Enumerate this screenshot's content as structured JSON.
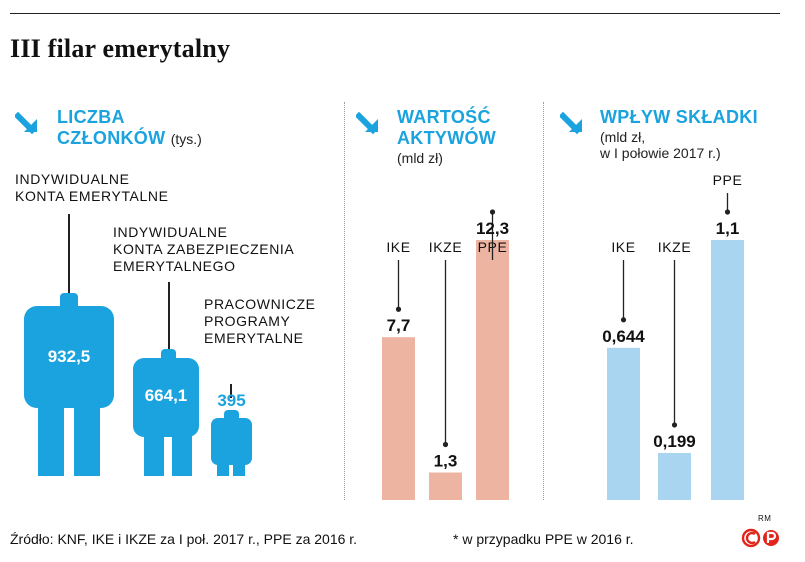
{
  "title": "III filar emerytalny",
  "colors": {
    "accent": "#1aa3de",
    "asset_bar": "#eeb4a2",
    "contrib_bar": "#a9d5f1",
    "logo_red": "#e2251b"
  },
  "icons": {
    "section_arrow": "arrow-down-right-icon",
    "logo": "cp-logo-icon"
  },
  "members": {
    "title_line1": "LICZBA",
    "title_line2": "CZŁONKÓW",
    "unit": "(tys.)",
    "ike_label_1": "INDYWIDUALNE",
    "ike_label_2": "KONTA EMERYTALNE",
    "ikze_label_1": "INDYWIDUALNE",
    "ikze_label_2": "KONTA ZABEZPIECZENIA",
    "ikze_label_3": "EMERYTALNEGO",
    "ppe_label_1": "PRACOWNICZE",
    "ppe_label_2": "PROGRAMY",
    "ppe_label_3": "EMERYTALNE",
    "ike_value": "932,5",
    "ikze_value": "664,1",
    "ppe_value": "395"
  },
  "assets": {
    "title_line1": "WARTOŚĆ",
    "title_line2": "AKTYWÓW",
    "unit": "(mld zł)"
  },
  "contrib": {
    "title_line1": "WPŁYW SKŁADKI",
    "unit_line1": "(mld zł,",
    "unit_line2": "w I połowie 2017 r.)"
  },
  "chart_data": [
    {
      "type": "pictogram",
      "title": "LICZBA CZŁONKÓW",
      "unit": "(tys.)",
      "categories": [
        "INDYWIDUALNE KONTA EMERYTALNE",
        "INDYWIDUALNE KONTA ZABEZPIECZENIA EMERYTALNEGO",
        "PRACOWNICZE PROGRAMY EMERYTALNE"
      ],
      "values": [
        932.5,
        664.1,
        395
      ],
      "value_labels": [
        "932,5",
        "664,1",
        "395"
      ]
    },
    {
      "type": "bar",
      "title": "WARTOŚĆ AKTYWÓW",
      "unit": "(mld zł)",
      "categories": [
        "IKE",
        "IKZE",
        "PPE"
      ],
      "values": [
        7.7,
        1.3,
        12.3
      ],
      "value_labels": [
        "7,7",
        "1,3",
        "12,3"
      ],
      "color": "#eeb4a2",
      "label_tops": [
        252,
        252,
        252
      ]
    },
    {
      "type": "bar",
      "title": "WPŁYW SKŁADKI",
      "unit": "(mld zł, w I połowie 2017 r.)",
      "categories": [
        "IKE",
        "IKZE",
        "PPE"
      ],
      "values": [
        0.644,
        0.199,
        1.1
      ],
      "value_labels": [
        "0,644",
        "0,199",
        "1,1"
      ],
      "color": "#a9d5f1",
      "label_tops": [
        252,
        252,
        185
      ]
    }
  ],
  "footer": {
    "source": "Źródło: KNF, IKE i IKZE za I poł. 2017 r., PPE za 2016 r.",
    "footnote": "* w przypadku PPE w 2016 r.",
    "credit": "RM"
  }
}
